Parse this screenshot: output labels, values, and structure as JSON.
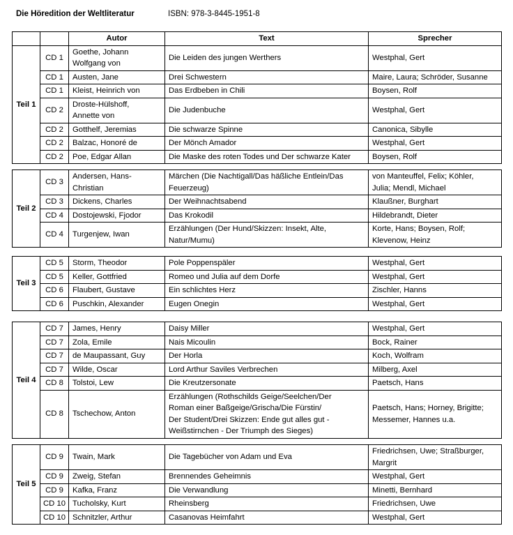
{
  "header": {
    "title": "Die Höredition der Weltliteratur",
    "isbn": "ISBN: 978-3-8445-1951-8"
  },
  "columns": [
    "",
    "",
    "Autor",
    "Text",
    "Sprecher"
  ],
  "groups": [
    {
      "label": "Teil 1",
      "rows": [
        {
          "cd": "CD 1",
          "autor": "Goethe, Johann\nWolfgang von",
          "text": "Die Leiden des jungen Werthers",
          "sprecher": "Westphal, Gert"
        },
        {
          "cd": "CD 1",
          "autor": "Austen, Jane",
          "text": "Drei Schwestern",
          "sprecher": "Maire, Laura; Schröder, Susanne"
        },
        {
          "cd": "CD 1",
          "autor": "Kleist, Heinrich von",
          "text": "Das Erdbeben in Chili",
          "sprecher": "Boysen, Rolf"
        },
        {
          "cd": "CD 2",
          "autor": "Droste-Hülshoff,\nAnnette von",
          "text": "Die Judenbuche",
          "sprecher": "Westphal, Gert"
        },
        {
          "cd": "CD 2",
          "autor": "Gotthelf, Jeremias",
          "text": "Die schwarze Spinne",
          "sprecher": "Canonica, Sibylle"
        },
        {
          "cd": "CD 2",
          "autor": "Balzac, Honoré de",
          "text": "Der Mönch Amador",
          "sprecher": "Westphal, Gert"
        },
        {
          "cd": "CD 2",
          "autor": "Poe, Edgar Allan",
          "text": "Die Maske des roten Todes und Der schwarze Kater",
          "sprecher": "Boysen, Rolf"
        }
      ]
    },
    {
      "label": "Teil 2",
      "rows": [
        {
          "cd": "CD 3",
          "autor": "Andersen, Hans-\nChristian",
          "text": "Märchen (Die Nachtigall/Das  häßliche Entlein/Das\nFeuerzeug)",
          "sprecher": "von Manteuffel, Felix;  Köhler,\nJulia; Mendl, Michael"
        },
        {
          "cd": "CD 3",
          "autor": "Dickens, Charles",
          "text": "Der Weihnachtsabend",
          "sprecher": "Klaußner, Burghart"
        },
        {
          "cd": "CD 4",
          "autor": "Dostojewski,  Fjodor",
          "text": "Das Krokodil",
          "sprecher": "Hildebrandt, Dieter"
        },
        {
          "cd": "CD 4",
          "autor": "Turgenjew, Iwan",
          "text": "Erzählungen (Der Hund/Skizzen:  Insekt, Alte,\nNatur/Mumu)",
          "sprecher": "Korte, Hans; Boysen, Rolf;\nKlevenow, Heinz"
        }
      ]
    },
    {
      "label": "Teil 3",
      "rows": [
        {
          "cd": "CD 5",
          "autor": "Storm, Theodor",
          "text": "Pole Poppenspäler",
          "sprecher": "Westphal, Gert"
        },
        {
          "cd": "CD 5",
          "autor": "Keller, Gottfried",
          "text": "Romeo und Julia auf dem Dorfe",
          "sprecher": "Westphal, Gert"
        },
        {
          "cd": "CD 6",
          "autor": "Flaubert, Gustave",
          "text": "Ein schlichtes Herz",
          "sprecher": "Zischler, Hanns"
        },
        {
          "cd": "CD 6",
          "autor": "Puschkin, Alexander",
          "text": "Eugen Onegin",
          "sprecher": "Westphal, Gert"
        }
      ]
    },
    {
      "label": "Teil 4",
      "rows": [
        {
          "cd": "CD 7",
          "autor": "James, Henry",
          "text": "Daisy Miller",
          "sprecher": "Westphal, Gert"
        },
        {
          "cd": "CD 7",
          "autor": "Zola, Emile",
          "text": "Nais Micoulin",
          "sprecher": "Bock, Rainer"
        },
        {
          "cd": "CD 7",
          "autor": "de Maupassant,  Guy",
          "text": "Der Horla",
          "sprecher": "Koch, Wolfram"
        },
        {
          "cd": "CD 7",
          "autor": "Wilde, Oscar",
          "text": "Lord Arthur Saviles Verbrechen",
          "sprecher": "Milberg, Axel"
        },
        {
          "cd": "CD 8",
          "autor": "Tolstoi,  Lew",
          "text": "Die Kreutzersonate",
          "sprecher": "Paetsch, Hans"
        },
        {
          "cd": "CD 8",
          "autor": "Tschechow, Anton",
          "text": "Erzählungen (Rothschilds Geige/Seelchen/Der\nRoman einer Baßgeige/Grischa/Die  Fürstin/\nDer Student/Drei Skizzen:  Ende gut alles gut -\nWeißstirnchen - Der Triumph des Sieges)",
          "sprecher": "Paetsch, Hans; Horney, Brigitte;\nMessemer, Hannes  u.a."
        }
      ]
    },
    {
      "label": "Teil 5",
      "rows": [
        {
          "cd": "CD 9",
          "autor": "Twain,  Mark",
          "text": "Die Tagebücher von Adam und Eva",
          "sprecher": "Friedrichsen, Uwe; Straßburger,\nMargrit"
        },
        {
          "cd": "CD 9",
          "autor": "Zweig, Stefan",
          "text": "Brennendes Geheimnis",
          "sprecher": "Westphal, Gert"
        },
        {
          "cd": "CD 9",
          "autor": "Kafka, Franz",
          "text": "Die Verwandlung",
          "sprecher": "Minetti, Bernhard"
        },
        {
          "cd": "CD 10",
          "autor": "Tucholsky, Kurt",
          "text": "Rheinsberg",
          "sprecher": "Friedrichsen, Uwe"
        },
        {
          "cd": "CD 10",
          "autor": "Schnitzler, Arthur",
          "text": "Casanovas  Heimfahrt",
          "sprecher": "Westphal, Gert"
        }
      ]
    }
  ]
}
